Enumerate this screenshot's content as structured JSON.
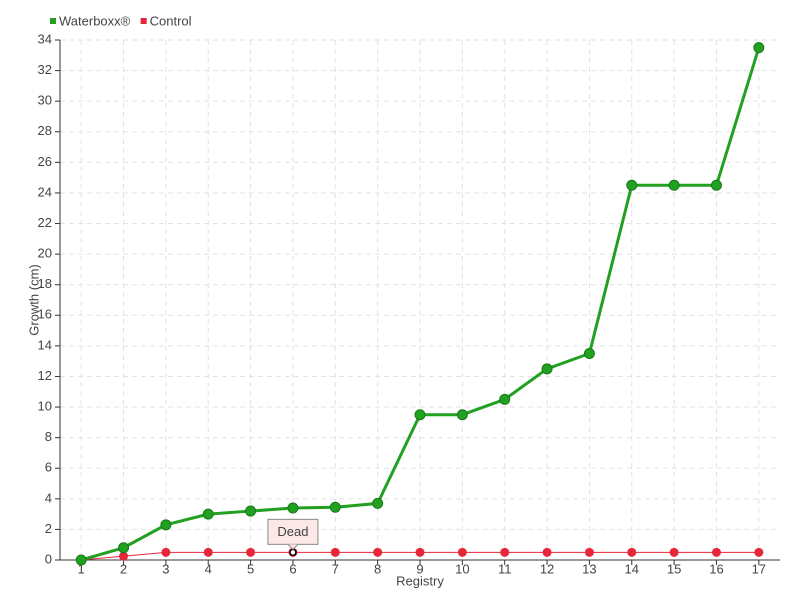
{
  "chart_data": {
    "type": "line",
    "x_label": "Registry",
    "y_label": "Growth (cm)",
    "categories": [
      "1",
      "2",
      "3",
      "4",
      "5",
      "6",
      "7",
      "8",
      "9",
      "10",
      "11",
      "12",
      "13",
      "14",
      "15",
      "16",
      "17"
    ],
    "series": [
      {
        "name": "Waterboxx®",
        "color": "#22a022",
        "values": [
          0,
          0.8,
          2.3,
          3.0,
          3.2,
          3.4,
          3.45,
          3.7,
          9.5,
          9.5,
          10.5,
          12.5,
          13.5,
          24.5,
          24.5,
          24.5,
          33.5
        ]
      },
      {
        "name": "Control",
        "color": "#e8263a",
        "values": [
          0,
          0.25,
          0.5,
          0.5,
          0.5,
          0.5,
          0.5,
          0.5,
          0.5,
          0.5,
          0.5,
          0.5,
          0.5,
          0.5,
          0.5,
          0.5,
          0.5
        ]
      }
    ],
    "annotations": [
      {
        "text": "Dead"
      }
    ],
    "ylim": [
      0,
      34
    ],
    "yticks": [
      0,
      2,
      4,
      6,
      8,
      10,
      12,
      14,
      16,
      18,
      20,
      22,
      24,
      26,
      28,
      30,
      32,
      34
    ],
    "grid": true,
    "legend": "top-left"
  }
}
